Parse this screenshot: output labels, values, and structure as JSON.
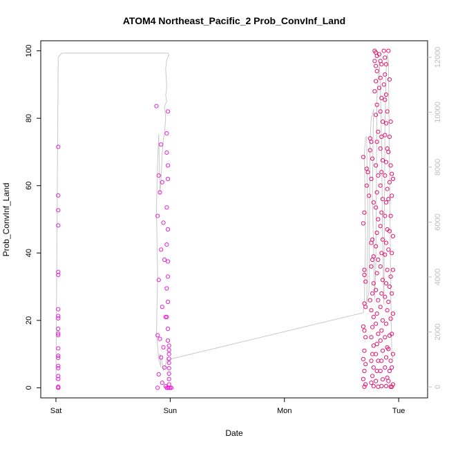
{
  "chart_data": {
    "type": "scatter",
    "title": "ATOM4 Northeast_Pacific_2 Prob_ConvInf_Land",
    "xlabel": "Date",
    "ylabel": "Prob_ConvInf_Land",
    "x_ticks": [
      "Sat",
      "Sun",
      "Mon",
      "Tue"
    ],
    "x_domain_days": [
      0,
      3.12
    ],
    "ylim": [
      -3,
      103
    ],
    "y_ticks": [
      0,
      20,
      40,
      60,
      80,
      100
    ],
    "y2lim": [
      -400,
      12600
    ],
    "y2_ticks": [
      0,
      2000,
      4000,
      6000,
      8000,
      10000,
      12000
    ],
    "colors": {
      "early": "#e81fd6",
      "late": "#e8106e",
      "count_line": "#c8c8c8",
      "frame": "#000000"
    },
    "series": [
      {
        "points": [
          [
            0.02,
            0
          ],
          [
            0.02,
            0
          ],
          [
            0.02,
            0.3
          ],
          [
            0.02,
            2.6
          ],
          [
            0.02,
            3.5
          ],
          [
            0.02,
            5.8
          ],
          [
            0.02,
            6.5
          ],
          [
            0.02,
            8.9
          ],
          [
            0.02,
            9.5
          ],
          [
            0.02,
            11.7
          ],
          [
            0.02,
            15.6
          ],
          [
            0.02,
            16.1
          ],
          [
            0.02,
            17.5
          ],
          [
            0.02,
            20.6
          ],
          [
            0.02,
            21.3
          ],
          [
            0.02,
            23.3
          ],
          [
            0.02,
            33.5
          ],
          [
            0.02,
            34.4
          ],
          [
            0.02,
            48.2
          ],
          [
            0.02,
            52.7
          ],
          [
            0.02,
            57.1
          ],
          [
            0.02,
            71.5
          ],
          [
            0.88,
            83.6
          ],
          [
            0.92,
            72.2
          ],
          [
            0.9,
            63.0
          ],
          [
            0.93,
            61.0
          ],
          [
            0.91,
            58.0
          ],
          [
            0.89,
            51.0
          ],
          [
            0.94,
            49.0
          ],
          [
            0.92,
            41.0
          ],
          [
            0.95,
            38.0
          ],
          [
            0.9,
            32.0
          ],
          [
            0.93,
            24.0
          ],
          [
            0.96,
            21.0
          ],
          [
            0.89,
            15.6
          ],
          [
            0.91,
            14.5
          ],
          [
            0.94,
            12.0
          ],
          [
            0.92,
            9.0
          ],
          [
            0.95,
            6.0
          ],
          [
            0.9,
            4.0
          ],
          [
            0.93,
            1.5
          ],
          [
            0.96,
            0.5
          ],
          [
            0.89,
            0
          ],
          [
            0.97,
            75.5
          ],
          [
            0.97,
            69.8
          ],
          [
            0.98,
            82.0
          ],
          [
            0.98,
            66.0
          ],
          [
            0.98,
            62.0
          ],
          [
            0.97,
            53.5
          ],
          [
            0.98,
            47.0
          ],
          [
            0.97,
            42.5
          ],
          [
            0.98,
            37.5
          ],
          [
            0.98,
            33.0
          ],
          [
            0.97,
            29.5
          ],
          [
            0.98,
            25.5
          ],
          [
            0.97,
            21.0
          ],
          [
            0.98,
            17.5
          ],
          [
            0.98,
            14.0
          ],
          [
            0.99,
            12.5
          ],
          [
            0.99,
            11.2
          ],
          [
            0.99,
            10.0
          ],
          [
            0.99,
            8.6
          ],
          [
            0.99,
            7.4
          ],
          [
            0.99,
            5.8
          ],
          [
            0.99,
            4.2
          ],
          [
            0.99,
            2.6
          ],
          [
            0.99,
            1.0
          ],
          [
            0.97,
            0
          ],
          [
            0.98,
            0
          ],
          [
            0.99,
            0
          ],
          [
            1.0,
            0
          ],
          [
            1.01,
            0
          ]
        ]
      },
      {
        "points": [
          [
            2.69,
            68.5
          ],
          [
            2.7,
            52.0
          ],
          [
            2.69,
            48.8
          ],
          [
            2.7,
            35.0
          ],
          [
            2.7,
            33.5
          ],
          [
            2.71,
            31.5
          ],
          [
            2.7,
            25.0
          ],
          [
            2.71,
            24.0
          ],
          [
            2.69,
            18.2
          ],
          [
            2.7,
            17.0
          ],
          [
            2.71,
            15.0
          ],
          [
            2.7,
            11.0
          ],
          [
            2.69,
            8.5
          ],
          [
            2.71,
            7.0
          ],
          [
            2.7,
            5.0
          ],
          [
            2.69,
            2.6
          ],
          [
            2.71,
            1.0
          ],
          [
            2.7,
            0.3
          ],
          [
            2.72,
            65.0
          ],
          [
            2.73,
            64.0
          ],
          [
            2.72,
            60.0
          ],
          [
            2.74,
            57.0
          ],
          [
            2.75,
            74.0
          ],
          [
            2.76,
            73.0
          ],
          [
            2.75,
            70.5
          ],
          [
            2.77,
            68.0
          ],
          [
            2.76,
            62.0
          ],
          [
            2.78,
            55.0
          ],
          [
            2.77,
            44.0
          ],
          [
            2.76,
            43.0
          ],
          [
            2.78,
            39.0
          ],
          [
            2.77,
            38.0
          ],
          [
            2.76,
            36.0
          ],
          [
            2.78,
            31.0
          ],
          [
            2.77,
            28.0
          ],
          [
            2.75,
            26.0
          ],
          [
            2.76,
            23.0
          ],
          [
            2.78,
            21.0
          ],
          [
            2.77,
            18.0
          ],
          [
            2.76,
            15.0
          ],
          [
            2.78,
            12.5
          ],
          [
            2.77,
            10.0
          ],
          [
            2.76,
            8.0
          ],
          [
            2.78,
            6.0
          ],
          [
            2.77,
            3.5
          ],
          [
            2.76,
            1.5
          ],
          [
            2.78,
            0.5
          ],
          [
            2.79,
            100.0
          ],
          [
            2.8,
            99.5
          ],
          [
            2.81,
            98.5
          ],
          [
            2.79,
            97.0
          ],
          [
            2.8,
            95.5
          ],
          [
            2.81,
            94.0
          ],
          [
            2.8,
            91.0
          ],
          [
            2.79,
            88.0
          ],
          [
            2.81,
            84.0
          ],
          [
            2.8,
            81.0
          ],
          [
            2.82,
            76.0
          ],
          [
            2.81,
            73.0
          ],
          [
            2.8,
            66.0
          ],
          [
            2.82,
            63.0
          ],
          [
            2.81,
            58.0
          ],
          [
            2.8,
            53.5
          ],
          [
            2.82,
            50.0
          ],
          [
            2.81,
            46.0
          ],
          [
            2.8,
            42.0
          ],
          [
            2.82,
            38.0
          ],
          [
            2.81,
            34.0
          ],
          [
            2.8,
            29.0
          ],
          [
            2.82,
            26.0
          ],
          [
            2.81,
            22.0
          ],
          [
            2.8,
            19.0
          ],
          [
            2.82,
            16.0
          ],
          [
            2.81,
            13.0
          ],
          [
            2.8,
            10.0
          ],
          [
            2.82,
            8.0
          ],
          [
            2.81,
            5.0
          ],
          [
            2.8,
            2.0
          ],
          [
            2.82,
            0.3
          ],
          [
            2.83,
            99.0
          ],
          [
            2.84,
            97.0
          ],
          [
            2.85,
            96.0
          ],
          [
            2.84,
            92.0
          ],
          [
            2.83,
            89.0
          ],
          [
            2.85,
            86.0
          ],
          [
            2.84,
            82.0
          ],
          [
            2.86,
            79.0
          ],
          [
            2.85,
            74.5
          ],
          [
            2.84,
            71.0
          ],
          [
            2.86,
            67.5
          ],
          [
            2.85,
            64.0
          ],
          [
            2.84,
            60.0
          ],
          [
            2.86,
            56.0
          ],
          [
            2.85,
            52.0
          ],
          [
            2.84,
            48.0
          ],
          [
            2.86,
            44.0
          ],
          [
            2.85,
            40.0
          ],
          [
            2.84,
            36.0
          ],
          [
            2.86,
            32.0
          ],
          [
            2.85,
            28.0
          ],
          [
            2.84,
            24.0
          ],
          [
            2.86,
            20.0
          ],
          [
            2.85,
            17.0
          ],
          [
            2.84,
            14.0
          ],
          [
            2.86,
            11.0
          ],
          [
            2.85,
            8.0
          ],
          [
            2.84,
            5.0
          ],
          [
            2.86,
            2.5
          ],
          [
            2.85,
            0.5
          ],
          [
            2.87,
            100.0
          ],
          [
            2.88,
            98.0
          ],
          [
            2.89,
            96.0
          ],
          [
            2.88,
            93.0
          ],
          [
            2.87,
            90.0
          ],
          [
            2.89,
            87.0
          ],
          [
            2.88,
            85.5
          ],
          [
            2.9,
            82.0
          ],
          [
            2.89,
            78.5
          ],
          [
            2.88,
            75.0
          ],
          [
            2.9,
            71.0
          ],
          [
            2.89,
            67.0
          ],
          [
            2.88,
            63.0
          ],
          [
            2.9,
            59.0
          ],
          [
            2.89,
            55.0
          ],
          [
            2.88,
            51.0
          ],
          [
            2.9,
            47.0
          ],
          [
            2.89,
            43.0
          ],
          [
            2.88,
            39.5
          ],
          [
            2.9,
            35.0
          ],
          [
            2.89,
            31.0
          ],
          [
            2.88,
            27.0
          ],
          [
            2.9,
            23.0
          ],
          [
            2.89,
            19.0
          ],
          [
            2.88,
            15.0
          ],
          [
            2.9,
            12.0
          ],
          [
            2.89,
            9.0
          ],
          [
            2.88,
            6.0
          ],
          [
            2.9,
            3.0
          ],
          [
            2.89,
            0.5
          ],
          [
            2.91,
            100.0
          ],
          [
            2.92,
            91.5
          ],
          [
            2.93,
            79.0
          ],
          [
            2.92,
            74.5
          ],
          [
            2.91,
            70.0
          ],
          [
            2.93,
            66.0
          ],
          [
            2.92,
            61.0
          ],
          [
            2.91,
            56.0
          ],
          [
            2.93,
            51.0
          ],
          [
            2.92,
            46.5
          ],
          [
            2.91,
            41.0
          ],
          [
            2.93,
            33.0
          ],
          [
            2.92,
            30.0
          ],
          [
            2.91,
            25.5
          ],
          [
            2.93,
            20.5
          ],
          [
            2.92,
            15.5
          ],
          [
            2.91,
            11.5
          ],
          [
            2.93,
            8.0
          ],
          [
            2.92,
            5.0
          ],
          [
            2.91,
            2.0
          ],
          [
            2.93,
            0.3
          ],
          [
            2.94,
            63.5
          ],
          [
            2.95,
            62.0
          ],
          [
            2.94,
            57.0
          ],
          [
            2.95,
            45.0
          ],
          [
            2.94,
            40.0
          ],
          [
            2.95,
            35.0
          ],
          [
            2.94,
            28.0
          ],
          [
            2.95,
            22.0
          ],
          [
            2.94,
            16.0
          ],
          [
            2.95,
            10.0
          ],
          [
            2.94,
            6.0
          ],
          [
            2.95,
            1.0
          ],
          [
            2.94,
            0.3
          ]
        ]
      }
    ],
    "count_line": [
      [
        0.0,
        240
      ],
      [
        0.02,
        12000
      ],
      [
        0.05,
        12150
      ],
      [
        0.98,
        12150
      ],
      [
        0.99,
        12100
      ],
      [
        0.97,
        11900
      ],
      [
        0.96,
        11600
      ],
      [
        0.97,
        10900
      ],
      [
        0.96,
        10600
      ],
      [
        0.97,
        10400
      ],
      [
        0.95,
        10200
      ],
      [
        0.96,
        9800
      ],
      [
        0.95,
        9200
      ],
      [
        0.94,
        9000
      ],
      [
        0.93,
        8500
      ],
      [
        0.92,
        7600
      ],
      [
        0.91,
        7000
      ],
      [
        0.9,
        9200
      ],
      [
        0.89,
        8200
      ],
      [
        0.88,
        6500
      ],
      [
        0.89,
        4000
      ],
      [
        0.88,
        2000
      ],
      [
        0.9,
        1000
      ],
      [
        0.92,
        700
      ],
      [
        0.91,
        1200
      ],
      [
        0.93,
        900
      ],
      [
        0.94,
        600
      ],
      [
        0.96,
        800
      ],
      [
        0.97,
        1100
      ],
      [
        0.98,
        900
      ],
      [
        0.99,
        1000
      ],
      [
        2.69,
        2700
      ],
      [
        2.7,
        3200
      ],
      [
        2.71,
        5400
      ],
      [
        2.7,
        8500
      ],
      [
        2.71,
        9100
      ],
      [
        2.72,
        9100
      ],
      [
        2.73,
        6000
      ],
      [
        2.72,
        3000
      ],
      [
        2.74,
        3500
      ],
      [
        2.75,
        9000
      ],
      [
        2.76,
        9800
      ],
      [
        2.77,
        9900
      ],
      [
        2.78,
        10100
      ],
      [
        2.77,
        7000
      ],
      [
        2.79,
        3200
      ],
      [
        2.8,
        4500
      ],
      [
        2.81,
        10500
      ],
      [
        2.82,
        11200
      ],
      [
        2.83,
        11800
      ],
      [
        2.84,
        10900
      ],
      [
        2.85,
        9000
      ],
      [
        2.86,
        5000
      ],
      [
        2.87,
        3000
      ],
      [
        2.88,
        9500
      ],
      [
        2.89,
        11500
      ],
      [
        2.9,
        12100
      ],
      [
        2.91,
        11900
      ],
      [
        2.92,
        8000
      ],
      [
        2.93,
        3500
      ],
      [
        2.94,
        1200
      ],
      [
        2.95,
        1000
      ]
    ]
  }
}
